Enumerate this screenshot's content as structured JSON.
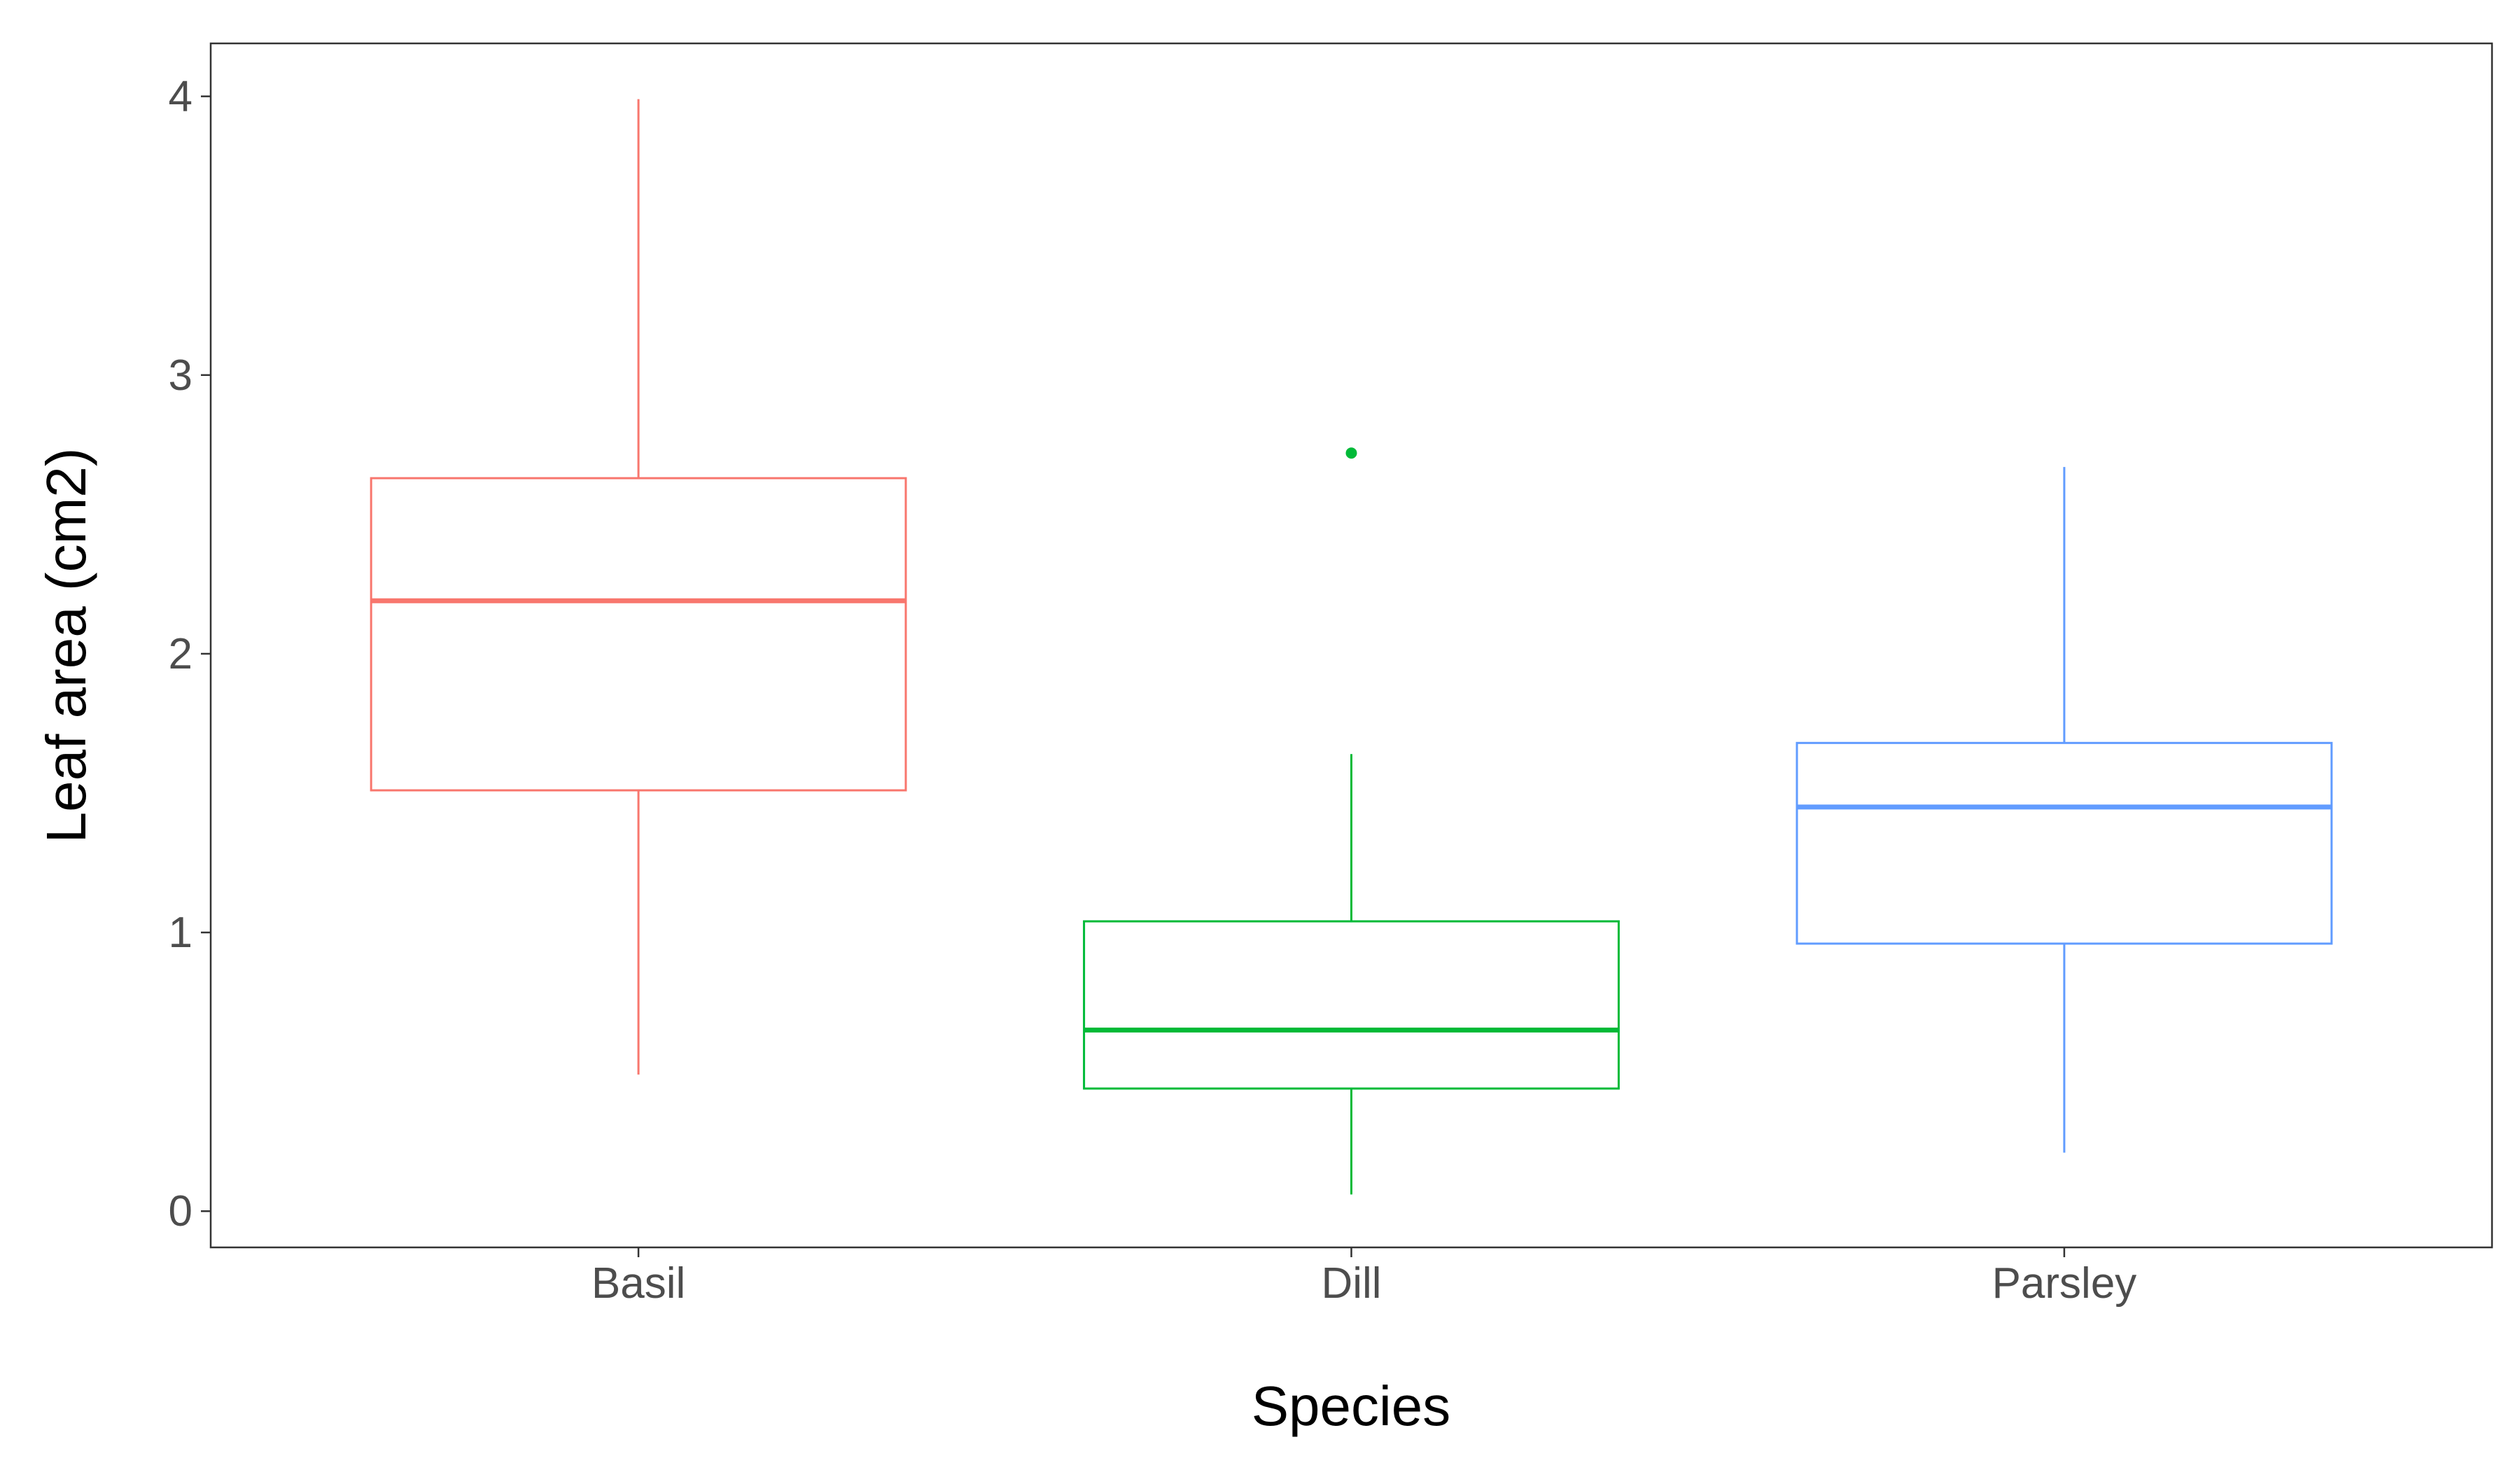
{
  "chart_data": {
    "type": "box",
    "title": "",
    "xlabel": "Species",
    "ylabel": "Leaf area (cm2)",
    "ylim": [
      -0.13,
      4.19
    ],
    "yticks": [
      0,
      1,
      2,
      3,
      4
    ],
    "yticklabels": [
      "0",
      "1",
      "2",
      "3",
      "4"
    ],
    "grid": false,
    "legend": "none",
    "categories": [
      "Basil",
      "Dill",
      "Parsley"
    ],
    "series": [
      {
        "name": "Basil",
        "color": "#F8766D",
        "min": 0.49,
        "q1": 1.51,
        "median": 2.19,
        "q3": 2.63,
        "max": 3.99,
        "outliers": []
      },
      {
        "name": "Dill",
        "color": "#00BA38",
        "min": 0.06,
        "q1": 0.44,
        "median": 0.65,
        "q3": 1.04,
        "max": 1.64,
        "outliers": [
          2.72
        ]
      },
      {
        "name": "Parsley",
        "color": "#619CFF",
        "min": 0.21,
        "q1": 0.96,
        "median": 1.45,
        "q3": 1.68,
        "max": 2.67,
        "outliers": []
      }
    ]
  }
}
